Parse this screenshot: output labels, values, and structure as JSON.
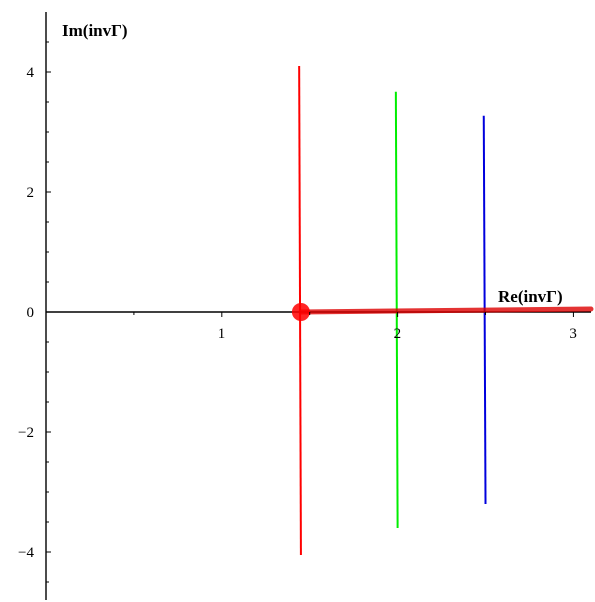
{
  "chart_data": {
    "type": "line",
    "xlabel": "Re(invΓ)",
    "ylabel": "Im(invΓ)",
    "xlim": [
      0,
      3.1
    ],
    "ylim": [
      -4.8,
      5.0
    ],
    "x_ticks": [
      {
        "value": 1,
        "label": "1"
      },
      {
        "value": 2,
        "label": "2"
      },
      {
        "value": 3,
        "label": "3"
      }
    ],
    "y_ticks": [
      {
        "value": -4,
        "label": "−4"
      },
      {
        "value": -2,
        "label": "−2"
      },
      {
        "value": 0,
        "label": "0"
      },
      {
        "value": 2,
        "label": "2"
      },
      {
        "value": 4,
        "label": "4"
      }
    ],
    "grid": false,
    "series": [
      {
        "color": "#ff0000",
        "x": [
          1.45,
          1.44
        ],
        "y": [
          -4.05,
          4.1
        ]
      },
      {
        "color": "#00ee00",
        "x": [
          2.0,
          1.99
        ],
        "y": [
          -3.6,
          3.67
        ]
      },
      {
        "color": "#0000dd",
        "x": [
          2.5,
          2.49
        ],
        "y": [
          -3.2,
          3.27
        ]
      }
    ],
    "highlight_segment": {
      "color": "#dd0000",
      "x": [
        1.45,
        3.1
      ],
      "y": [
        0.0,
        0.05
      ]
    },
    "marker": {
      "color": "#ff0000",
      "x": 1.45,
      "y": 0.0
    }
  }
}
